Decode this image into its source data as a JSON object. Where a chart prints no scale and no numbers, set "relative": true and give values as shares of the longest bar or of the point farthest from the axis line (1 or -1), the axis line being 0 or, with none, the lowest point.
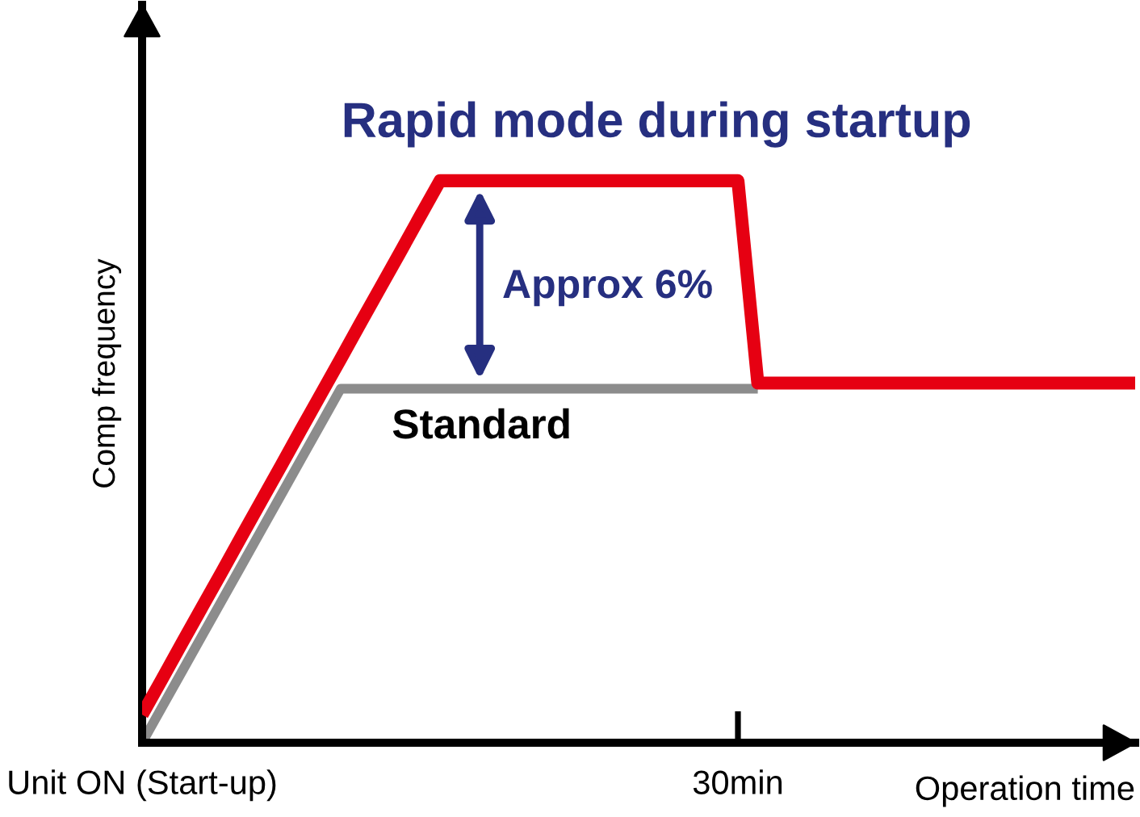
{
  "chart_data": {
    "type": "line",
    "relative": true,
    "xlabel": "Operation time",
    "ylabel": "Comp frequency",
    "categories": [
      "Unit ON (Start-up)",
      null,
      null,
      null,
      null,
      null,
      null,
      null,
      null,
      null,
      null,
      null,
      null,
      null,
      null,
      null,
      null,
      null,
      null,
      null,
      null,
      null,
      null,
      null,
      null,
      null,
      null,
      null,
      null,
      null,
      "30min",
      null,
      null,
      null,
      null,
      null,
      null,
      null,
      null,
      null,
      null,
      null,
      null,
      null,
      null,
      null,
      null,
      null,
      null,
      null,
      null
    ],
    "series": [
      {
        "color": "#8c8c8c",
        "values": [
          0,
          0.063,
          0.126,
          0.189,
          0.252,
          0.315,
          0.378,
          0.441,
          0.504,
          0.567,
          0.63,
          0.63,
          0.63,
          0.63,
          0.63,
          0.63,
          0.63,
          0.63,
          0.63,
          0.63,
          0.63,
          0.63,
          0.63,
          0.63,
          0.63,
          0.63,
          0.63,
          0.63,
          0.63,
          0.63,
          0.63,
          0.63,
          null,
          null,
          null,
          null,
          null,
          null,
          null,
          null,
          null,
          null,
          null,
          null,
          null,
          null,
          null,
          null,
          null,
          null,
          null
        ]
      },
      {
        "color": "#e60012",
        "values": [
          0.05,
          0.113,
          0.177,
          0.24,
          0.303,
          0.367,
          0.43,
          0.493,
          0.557,
          0.62,
          0.683,
          0.747,
          0.81,
          0.873,
          0.937,
          1,
          1,
          1,
          1,
          1,
          1,
          1,
          1,
          1,
          1,
          1,
          1,
          1,
          1,
          1,
          1,
          0.64,
          0.64,
          0.64,
          0.64,
          0.64,
          0.64,
          0.64,
          0.64,
          0.64,
          0.64,
          0.64,
          0.64,
          0.64,
          0.64,
          0.64,
          0.64,
          0.64,
          0.64,
          0.64,
          0.64
        ]
      }
    ],
    "annotations": [
      "Rapid mode during startup",
      "Approx 6%",
      "Standard"
    ],
    "line_style": "solid"
  }
}
